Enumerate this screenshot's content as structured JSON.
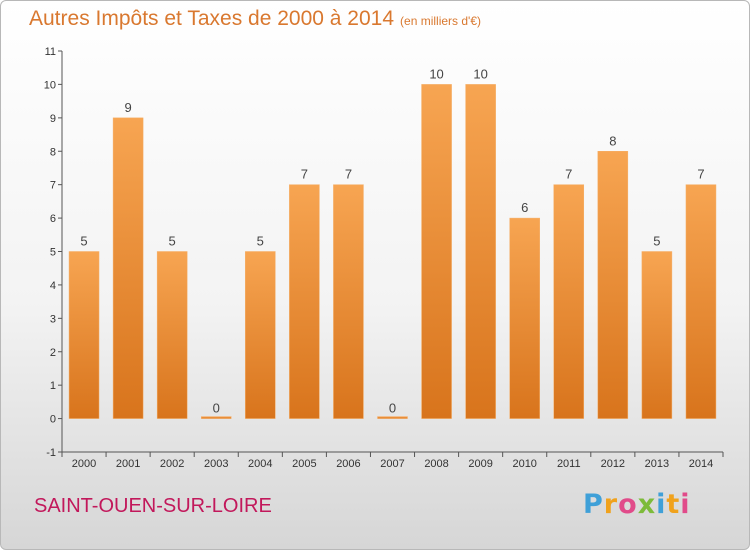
{
  "chart_data": {
    "type": "bar",
    "title": "Autres Impôts et Taxes de 2000 à 2014",
    "subtitle": "(en milliers d'€)",
    "categories": [
      "2000",
      "2001",
      "2002",
      "2003",
      "2004",
      "2005",
      "2006",
      "2007",
      "2008",
      "2009",
      "2010",
      "2011",
      "2012",
      "2013",
      "2014"
    ],
    "values": [
      5,
      9,
      5,
      0,
      5,
      7,
      7,
      0,
      10,
      10,
      6,
      7,
      8,
      5,
      7
    ],
    "ylim": [
      -1,
      11
    ],
    "yticks": [
      "-1",
      "0",
      "1",
      "2",
      "3",
      "4",
      "5",
      "6",
      "7",
      "8",
      "9",
      "10",
      "11"
    ],
    "grid": false,
    "bar_color": "#f0913a"
  },
  "footer": {
    "place": "SAINT-OUEN-SUR-LOIRE",
    "logo": [
      "P",
      "r",
      "o",
      "x",
      "i",
      "t",
      "i"
    ],
    "logo_colors": [
      "#3fa0d8",
      "#f0a21c",
      "#e14b8a",
      "#7dbb3a",
      "#3fa0d8",
      "#f0a21c",
      "#e14b8a"
    ]
  }
}
